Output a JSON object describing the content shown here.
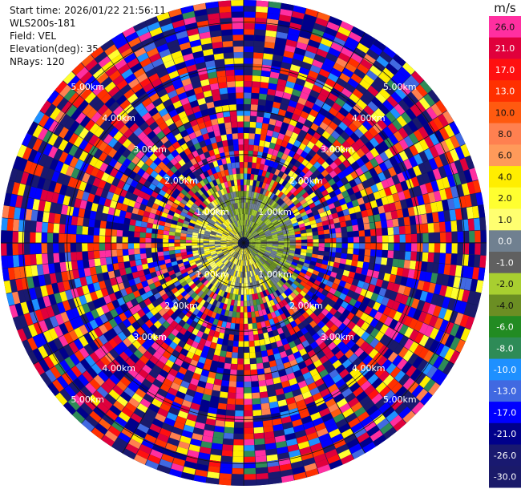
{
  "header": {
    "start_time": "Start time: 2026/01/22 21:56:11",
    "instrument": "WLS200s-181",
    "field": "Field: VEL",
    "elevation": "Elevation(deg): 35.00",
    "nrays": "NRays: 120"
  },
  "chart_data": {
    "type": "heatmap",
    "projection": "polar-ppi",
    "field": "VEL",
    "units": "m/s",
    "nrays": 120,
    "elevation_deg": 35.0,
    "range_rings_km": [
      1.0,
      2.0,
      3.0,
      4.0,
      5.0
    ],
    "ring_labels": [
      "1.00km",
      "2.00km",
      "3.00km",
      "4.00km",
      "5.00km"
    ],
    "max_range_km": 5.5,
    "colorbar": {
      "unit_label": "m/s",
      "ticks": [
        "26.0",
        "21.0",
        "17.0",
        "13.0",
        "10.0",
        "8.0",
        "6.0",
        "4.0",
        "2.0",
        "1.0",
        "0.0",
        "-1.0",
        "-2.0",
        "-4.0",
        "-6.0",
        "-8.0",
        "-10.0",
        "-13.0",
        "-17.0",
        "-21.0",
        "-26.0",
        "-30.0"
      ],
      "levels": [
        26,
        21,
        17,
        13,
        10,
        8,
        6,
        4,
        2,
        1,
        0,
        -1,
        -2,
        -4,
        -6,
        -8,
        -10,
        -13,
        -17,
        -21,
        -26,
        -30
      ],
      "colors": [
        "#ff2fa0",
        "#e0003c",
        "#ff1010",
        "#ff3000",
        "#ff5a10",
        "#ff8050",
        "#ff9a5a",
        "#ffee00",
        "#ffff30",
        "#ffff70",
        "#708090",
        "#606060",
        "#a8cf30",
        "#6b8e23",
        "#228b22",
        "#2e8b57",
        "#1e90ff",
        "#4169e1",
        "#0000ff",
        "#00008b",
        "#191970",
        "#1a1a6a"
      ]
    },
    "near_field_pattern": {
      "approaching_sector": "right/lower (greens)",
      "receding_sector": "left/upper (yellows)",
      "core_radius_km": 1.1
    }
  }
}
